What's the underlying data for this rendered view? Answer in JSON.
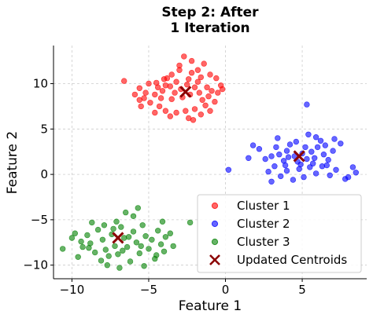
{
  "chart_data": {
    "type": "scatter",
    "title_lines": [
      "Step 2: After",
      "1 Iteration"
    ],
    "xlabel": "Feature 1",
    "ylabel": "Feature 2",
    "xlim": [
      -11.2,
      9.2
    ],
    "ylim": [
      -11.5,
      14.2
    ],
    "x_ticks": [
      -10,
      -5,
      0,
      5
    ],
    "y_ticks": [
      -10,
      -5,
      0,
      5,
      10
    ],
    "grid": true,
    "legend_position": "lower-right",
    "series": [
      {
        "name": "Cluster 1",
        "color": "#ff0000",
        "points": [
          [
            -6.6,
            10.3
          ],
          [
            -4.0,
            10.5
          ],
          [
            -3.5,
            11.0
          ],
          [
            -3.0,
            12.0
          ],
          [
            -2.7,
            13.0
          ],
          [
            -2.2,
            12.5
          ],
          [
            -1.8,
            11.5
          ],
          [
            -1.4,
            12.2
          ],
          [
            -1.0,
            11.0
          ],
          [
            -0.6,
            10.6
          ],
          [
            -0.3,
            9.8
          ],
          [
            -0.2,
            9.4
          ],
          [
            -0.5,
            9.0
          ],
          [
            -1.2,
            9.6
          ],
          [
            -1.8,
            10.2
          ],
          [
            -2.4,
            10.5
          ],
          [
            -3.2,
            10.2
          ],
          [
            -3.6,
            9.7
          ],
          [
            -4.1,
            9.2
          ],
          [
            -4.6,
            8.8
          ],
          [
            -5.2,
            9.0
          ],
          [
            -5.6,
            9.5
          ],
          [
            -5.0,
            10.0
          ],
          [
            -4.5,
            10.1
          ],
          [
            -3.9,
            9.8
          ],
          [
            -3.3,
            9.0
          ],
          [
            -2.8,
            8.5
          ],
          [
            -2.3,
            8.8
          ],
          [
            -1.7,
            9.0
          ],
          [
            -1.1,
            8.6
          ],
          [
            -0.7,
            8.0
          ],
          [
            -1.3,
            7.6
          ],
          [
            -2.0,
            7.2
          ],
          [
            -2.6,
            7.0
          ],
          [
            -3.2,
            6.8
          ],
          [
            -3.9,
            7.0
          ],
          [
            -4.3,
            7.5
          ],
          [
            -4.9,
            7.9
          ],
          [
            -5.6,
            8.2
          ],
          [
            -5.9,
            8.8
          ],
          [
            -5.5,
            7.5
          ],
          [
            -4.6,
            6.8
          ],
          [
            -3.6,
            6.4
          ],
          [
            -2.4,
            6.2
          ],
          [
            -2.1,
            6.0
          ],
          [
            -1.6,
            6.6
          ],
          [
            -1.0,
            7.0
          ],
          [
            -2.9,
            9.4
          ],
          [
            -2.5,
            9.9
          ],
          [
            -3.5,
            8.3
          ],
          [
            -4.2,
            8.4
          ],
          [
            -1.5,
            8.2
          ],
          [
            -2.0,
            9.6
          ],
          [
            -3.8,
            10.6
          ],
          [
            -2.2,
            11.2
          ],
          [
            -1.6,
            10.7
          ],
          [
            -3.0,
            11.5
          ],
          [
            -4.4,
            9.6
          ],
          [
            -5.3,
            8.4
          ],
          [
            -0.9,
            9.2
          ]
        ]
      },
      {
        "name": "Cluster 2",
        "color": "#0000ff",
        "points": [
          [
            0.2,
            0.5
          ],
          [
            1.8,
            3.2
          ],
          [
            1.5,
            1.8
          ],
          [
            2.2,
            2.8
          ],
          [
            2.6,
            1.7
          ],
          [
            3.0,
            2.0
          ],
          [
            3.3,
            3.0
          ],
          [
            3.5,
            2.2
          ],
          [
            3.8,
            1.5
          ],
          [
            4.0,
            2.6
          ],
          [
            4.2,
            3.3
          ],
          [
            4.5,
            2.0
          ],
          [
            4.7,
            1.4
          ],
          [
            5.0,
            2.3
          ],
          [
            5.2,
            3.0
          ],
          [
            5.4,
            4.4
          ],
          [
            5.6,
            2.5
          ],
          [
            5.8,
            1.8
          ],
          [
            6.0,
            3.0
          ],
          [
            6.2,
            3.7
          ],
          [
            6.4,
            2.2
          ],
          [
            6.7,
            1.6
          ],
          [
            7.0,
            2.6
          ],
          [
            7.5,
            3.4
          ],
          [
            7.8,
            -0.5
          ],
          [
            8.0,
            -0.3
          ],
          [
            8.3,
            0.8
          ],
          [
            8.5,
            0.2
          ],
          [
            2.8,
            0.3
          ],
          [
            3.0,
            -0.8
          ],
          [
            3.2,
            0.9
          ],
          [
            3.6,
            -0.2
          ],
          [
            4.0,
            0.4
          ],
          [
            4.4,
            -0.6
          ],
          [
            4.8,
            0.6
          ],
          [
            5.1,
            -0.3
          ],
          [
            5.5,
            0.8
          ],
          [
            5.9,
            0.1
          ],
          [
            6.3,
            0.9
          ],
          [
            6.8,
            -0.1
          ],
          [
            7.2,
            0.5
          ],
          [
            5.3,
            7.7
          ],
          [
            3.4,
            4.0
          ],
          [
            4.6,
            3.6
          ],
          [
            5.9,
            4.1
          ],
          [
            6.5,
            3.2
          ],
          [
            7.1,
            3.9
          ],
          [
            3.9,
            1.0
          ],
          [
            4.9,
            1.1
          ],
          [
            5.7,
            1.2
          ],
          [
            6.6,
            1.0
          ],
          [
            4.1,
            1.9
          ],
          [
            5.3,
            1.7
          ]
        ]
      },
      {
        "name": "Cluster 3",
        "color": "#008000",
        "points": [
          [
            -10.6,
            -8.2
          ],
          [
            -10.0,
            -7.0
          ],
          [
            -9.6,
            -9.1
          ],
          [
            -9.3,
            -8.0
          ],
          [
            -9.0,
            -6.7
          ],
          [
            -8.8,
            -7.6
          ],
          [
            -8.5,
            -8.6
          ],
          [
            -8.3,
            -6.1
          ],
          [
            -8.0,
            -7.2
          ],
          [
            -7.8,
            -8.3
          ],
          [
            -7.6,
            -9.0
          ],
          [
            -7.4,
            -6.6
          ],
          [
            -7.2,
            -7.9
          ],
          [
            -7.0,
            -8.8
          ],
          [
            -6.8,
            -5.8
          ],
          [
            -6.6,
            -7.0
          ],
          [
            -6.4,
            -8.0
          ],
          [
            -6.2,
            -9.6
          ],
          [
            -6.0,
            -6.3
          ],
          [
            -5.8,
            -7.5
          ],
          [
            -5.6,
            -8.7
          ],
          [
            -5.4,
            -5.6
          ],
          [
            -5.2,
            -6.8
          ],
          [
            -5.0,
            -8.2
          ],
          [
            -4.8,
            -7.2
          ],
          [
            -4.6,
            -9.3
          ],
          [
            -4.4,
            -6.2
          ],
          [
            -4.2,
            -7.7
          ],
          [
            -4.0,
            -8.5
          ],
          [
            -3.6,
            -6.5
          ],
          [
            -3.4,
            -7.9
          ],
          [
            -4.1,
            -5.2
          ],
          [
            -6.0,
            -4.6
          ],
          [
            -6.5,
            -4.2
          ],
          [
            -5.7,
            -3.7
          ],
          [
            -7.1,
            -5.2
          ],
          [
            -7.9,
            -5.6
          ],
          [
            -8.7,
            -5.3
          ],
          [
            -9.4,
            -7.4
          ],
          [
            -6.9,
            -10.3
          ],
          [
            -7.7,
            -10.0
          ],
          [
            -5.3,
            -10.1
          ],
          [
            -8.1,
            -9.5
          ],
          [
            -6.3,
            -6.9
          ],
          [
            -7.3,
            -6.0
          ],
          [
            -5.5,
            -7.9
          ],
          [
            -4.5,
            -8.9
          ],
          [
            -3.9,
            -6.9
          ],
          [
            -6.7,
            -8.4
          ],
          [
            -8.9,
            -8.1
          ],
          [
            -2.3,
            -5.3
          ],
          [
            -9.8,
            -6.5
          ]
        ]
      }
    ],
    "centroids": {
      "name": "Updated Centroids",
      "color": "#8b0000",
      "points": [
        [
          -2.6,
          9.1
        ],
        [
          4.8,
          2.0
        ],
        [
          -7.0,
          -7.0
        ]
      ]
    }
  }
}
